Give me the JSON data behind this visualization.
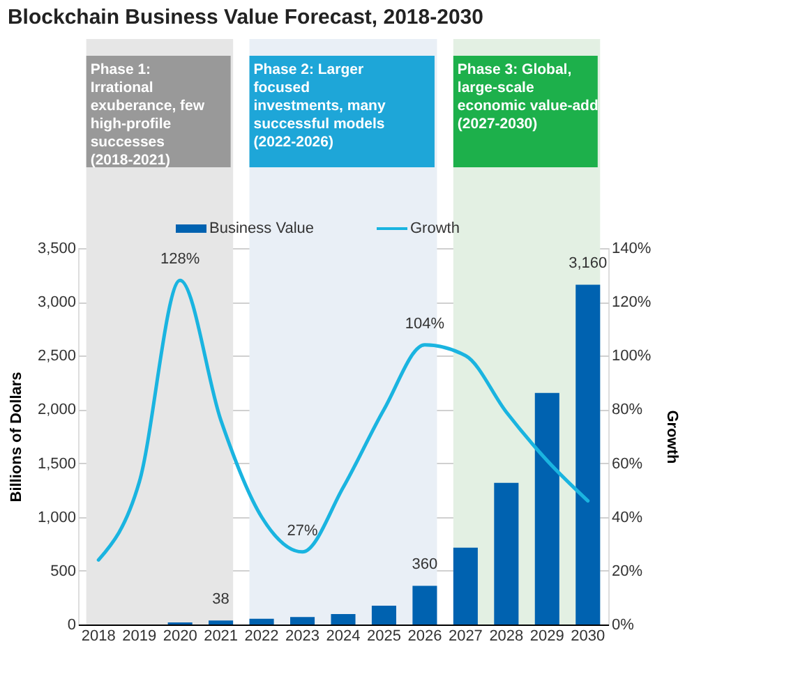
{
  "chart_data": {
    "type": "bar",
    "title": "Blockchain Business Value Forecast, 2018-2030",
    "categories": [
      "2018",
      "2019",
      "2020",
      "2021",
      "2022",
      "2023",
      "2024",
      "2025",
      "2026",
      "2027",
      "2028",
      "2029",
      "2030"
    ],
    "series": [
      {
        "name": "Business Value",
        "color": "#0062b0",
        "values": [
          null,
          null,
          20,
          38,
          53,
          70,
          98,
          175,
          360,
          714,
          1318,
          2154,
          3160
        ],
        "value_labels": [
          null,
          null,
          null,
          "38",
          null,
          null,
          null,
          null,
          "360",
          null,
          null,
          null,
          "3,160"
        ]
      },
      {
        "name": "Growth",
        "type": "line",
        "axis": "y2",
        "color": "#1ab4e0",
        "values": [
          24,
          53,
          128,
          76,
          40,
          27,
          51,
          80,
          104,
          100,
          79,
          61,
          46
        ],
        "value_labels": [
          null,
          null,
          "128%",
          null,
          null,
          "27%",
          null,
          null,
          "104%",
          null,
          null,
          null,
          null
        ]
      }
    ],
    "ylabel": "Billions of Dollars",
    "y2label": "Growth",
    "ylim": [
      0,
      3500
    ],
    "yticks": [
      0,
      {
        "value": 500,
        "label": "500"
      },
      {
        "value": 1000,
        "label": "1,000"
      },
      {
        "value": 1500,
        "label": "1,500"
      },
      {
        "value": 2000,
        "label": "2,000"
      },
      {
        "value": 2500,
        "label": "2,500"
      },
      {
        "value": 3000,
        "label": "3,000"
      },
      {
        "value": 3500,
        "label": "3,500"
      }
    ],
    "y2lim": [
      0,
      140
    ],
    "y2ticks": [
      {
        "value": 0,
        "label": "0%"
      },
      {
        "value": 20,
        "label": "20%"
      },
      {
        "value": 40,
        "label": "40%"
      },
      {
        "value": 60,
        "label": "60%"
      },
      {
        "value": 80,
        "label": "80%"
      },
      {
        "value": 100,
        "label": "100%"
      },
      {
        "value": 120,
        "label": "120%"
      },
      {
        "value": 140,
        "label": "140%"
      }
    ],
    "bands": [
      {
        "axis": "x",
        "from": "2018",
        "to": "2021",
        "label": "Phase 1: Irrational exuberance, few high-profile successes (2018-2021)",
        "color": "#e6e6e6"
      },
      {
        "axis": "x",
        "from": "2022",
        "to": "2026",
        "label": "Phase 2: Larger focused investments, many successful models (2022-2026)",
        "color": "#e9eff6"
      },
      {
        "axis": "x",
        "from": "2027",
        "to": "2030",
        "label": "Phase 3: Global, large-scale economic value-add (2027-2030)",
        "color": "#e3f0e3"
      }
    ],
    "grid": "y",
    "legend": "top"
  }
}
